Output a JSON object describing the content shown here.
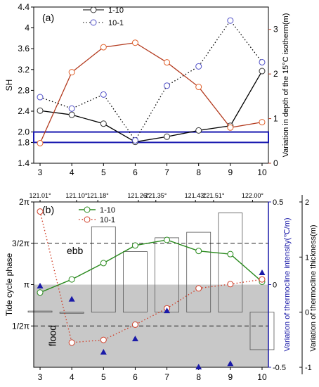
{
  "chart_data": [
    {
      "type": "line",
      "panel_label": "(a)",
      "x": [
        3,
        4,
        5,
        6,
        7,
        8,
        9,
        10
      ],
      "xlim": [
        2.8,
        10.2
      ],
      "x_ticks": [
        "3",
        "4",
        "5",
        "6",
        "7",
        "8",
        "9",
        "10"
      ],
      "ylabel": "SH",
      "ylim": [
        1.4,
        4.4
      ],
      "y_ticks": [
        "1.4",
        "1.8",
        "2.0",
        "2.4",
        "2.8",
        "3.2",
        "3.6",
        "4",
        "4.4"
      ],
      "y2label": "Variation in depth of the 15°C isotherm(m)",
      "y2lim": [
        0,
        3.5
      ],
      "y2_ticks": [
        "0",
        "1",
        "2",
        "3"
      ],
      "series": [
        {
          "name": "1-10",
          "axis": "left",
          "style": "solid",
          "color": "#000000",
          "values": [
            2.41,
            2.33,
            2.16,
            1.81,
            1.91,
            2.03,
            2.12,
            3.17
          ]
        },
        {
          "name": "10-1",
          "axis": "left",
          "style": "dotted",
          "color": "#000000",
          "values": [
            2.67,
            2.45,
            2.72,
            1.84,
            2.89,
            3.26,
            4.14,
            3.34
          ]
        },
        {
          "name": "",
          "axis": "right",
          "style": "solid",
          "color": "#b33a1e",
          "values": [
            0.45,
            2.04,
            2.6,
            2.7,
            2.26,
            1.71,
            0.8,
            0.92
          ]
        }
      ],
      "highlight_band": {
        "y_min": 1.8,
        "y_max": 2.0,
        "color": "#1a1ab0"
      }
    },
    {
      "type": "line",
      "panel_label": "(b)",
      "x": [
        3,
        4,
        5,
        6,
        7,
        8,
        9,
        10
      ],
      "xlim": [
        2.8,
        10.2
      ],
      "x_ticks": [
        "3",
        "4",
        "5",
        "6",
        "7",
        "8",
        "9",
        "10"
      ],
      "top_labels": [
        {
          "x": 3,
          "text": "121.01°"
        },
        {
          "x": 4.15,
          "text": "121.10°"
        },
        {
          "x": 4.82,
          "text": "121.18°"
        },
        {
          "x": 6.1,
          "text": "121.26°"
        },
        {
          "x": 6.65,
          "text": "121.35°"
        },
        {
          "x": 7.9,
          "text": "121.43°"
        },
        {
          "x": 8.47,
          "text": "121.51°"
        },
        {
          "x": 9.7,
          "text": "122.00°"
        }
      ],
      "ylabel": "Tide cycle phase",
      "ylim": [
        0,
        6.2832
      ],
      "y_ticks": [
        {
          "value": 1.5708,
          "label": "1/2π"
        },
        {
          "value": 3.1416,
          "label": "π"
        },
        {
          "value": 4.7124,
          "label": "3/2π"
        },
        {
          "value": 6.2832,
          "label": "2π"
        }
      ],
      "y2label": "Variation of thermocline intensity(℃/m)",
      "y2lim": [
        -0.5,
        0.5
      ],
      "y2_ticks": [
        "-0.5",
        "0",
        "0.5"
      ],
      "y3label": "Variation of thermocline thickness(m)",
      "y3lim": [
        -1,
        2
      ],
      "y3_ticks": [
        "-1",
        "0",
        "1",
        "2"
      ],
      "annotations": [
        {
          "text": "ebb",
          "x": 4.1,
          "y": 4.3
        },
        {
          "text": "flood",
          "x": 3.5,
          "y": 1.2
        }
      ],
      "reference_lines": [
        4.7124,
        1.5708
      ],
      "flood_region": {
        "y_max": 3.1416,
        "color": "#c8c8c8"
      },
      "series": [
        {
          "name": "1-10",
          "axis": "left",
          "style": "solid",
          "color": "#2a8a1e",
          "values": [
            2.84,
            3.34,
            3.96,
            4.63,
            4.84,
            4.42,
            4.3,
            3.25
          ]
        },
        {
          "name": "10-1",
          "axis": "left",
          "style": "dotted",
          "color": "#d0402a",
          "values": [
            5.92,
            0.94,
            1.04,
            1.62,
            2.24,
            3.0,
            3.16,
            3.34
          ]
        }
      ],
      "markers": {
        "axis": "y2",
        "color": "#1a1aa8",
        "values": [
          -0.01,
          -0.09,
          -0.41,
          -0.33,
          -0.16,
          -0.52,
          -0.48,
          0.07
        ]
      },
      "bars": {
        "axis": "y3",
        "style": "outline",
        "values": [
          0.02,
          -0.02,
          1.55,
          1.1,
          1.35,
          1.45,
          1.8,
          -0.68
        ]
      }
    }
  ]
}
